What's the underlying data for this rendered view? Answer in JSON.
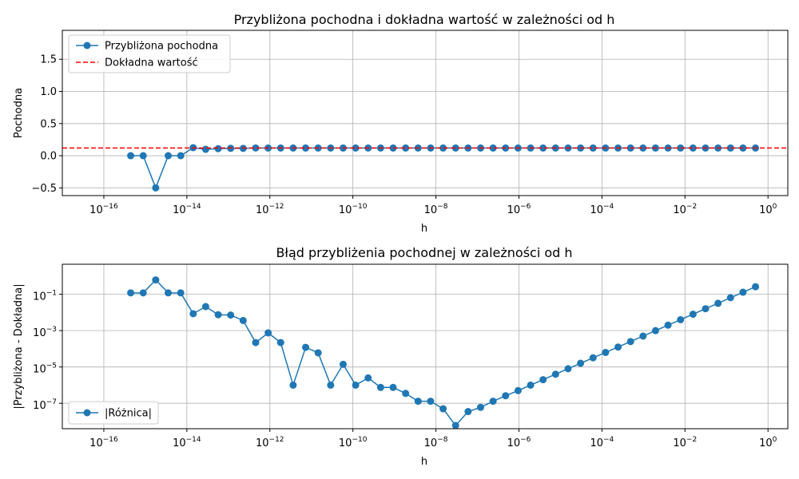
{
  "chart_data": [
    {
      "type": "line",
      "title": "Przybliżona pochodna i dokładna wartość w zależności od h",
      "xlabel": "h",
      "ylabel": "Pochodna",
      "xscale": "log",
      "yscale": "linear",
      "xlim": [
        1e-17,
        3
      ],
      "ylim": [
        -0.62,
        1.95
      ],
      "grid": true,
      "legend_position": "top-left",
      "x_ticks": [
        {
          "value": 1e-16,
          "base": "10",
          "exp": "−16"
        },
        {
          "value": 1e-14,
          "base": "10",
          "exp": "−14"
        },
        {
          "value": 1e-12,
          "base": "10",
          "exp": "−12"
        },
        {
          "value": 1e-10,
          "base": "10",
          "exp": "−10"
        },
        {
          "value": 1e-08,
          "base": "10",
          "exp": "−8"
        },
        {
          "value": 1e-06,
          "base": "10",
          "exp": "−6"
        },
        {
          "value": 0.0001,
          "base": "10",
          "exp": "−4"
        },
        {
          "value": 0.01,
          "base": "10",
          "exp": "−2"
        },
        {
          "value": 1,
          "base": "10",
          "exp": "0"
        }
      ],
      "y_ticks": [
        {
          "value": -0.5,
          "label": "−0.5"
        },
        {
          "value": 0.0,
          "label": "0.0"
        },
        {
          "value": 0.5,
          "label": "0.5"
        },
        {
          "value": 1.0,
          "label": "1.0"
        },
        {
          "value": 1.5,
          "label": "1.5"
        }
      ],
      "series": [
        {
          "name": "Przybliżona pochodna",
          "color": "#1f77b4",
          "marker": "circle",
          "x": [
            4.44e-16,
            8.88e-16,
            1.776e-15,
            3.553e-15,
            7.105e-15,
            1.4211e-14,
            2.8422e-14,
            5.6843e-14,
            1.13687e-13,
            2.27374e-13,
            4.54747e-13,
            9.09495e-13,
            1.818989e-12,
            3.637979e-12,
            7.275958e-12,
            1.4551915e-11,
            2.910383e-11,
            5.820766e-11,
            1.16415322e-10,
            2.32830644e-10,
            4.65661287e-10,
            9.31322575e-10,
            1.86264515e-09,
            3.7252903e-09,
            7.4505806e-09,
            1.49011612e-08,
            2.98023224e-08,
            5.96046448e-08,
            1.192092896e-07,
            2.384185791e-07,
            4.768371582e-07,
            9.536743164e-07,
            1.9073486328e-06,
            3.8146972656e-06,
            7.6293945312e-06,
            1.52587890625e-05,
            3.0517578125e-05,
            6.103515625e-05,
            0.0001220703125,
            0.000244140625,
            0.00048828125,
            0.0009765625,
            0.001953125,
            0.00390625,
            0.0078125,
            0.015625,
            0.03125,
            0.0625,
            0.125,
            0.25,
            0.5
          ],
          "y": [
            0.0,
            0.0,
            -0.5,
            0.0,
            0.0,
            0.125,
            0.1,
            0.11,
            0.115,
            0.114,
            0.121,
            0.12,
            0.12,
            0.12,
            0.12,
            0.12,
            0.12,
            0.12,
            0.12,
            0.12,
            0.12,
            0.12,
            0.12,
            0.12,
            0.12,
            0.12,
            0.12,
            0.12,
            0.12,
            0.12,
            0.12,
            0.12,
            0.12,
            0.12,
            0.12,
            0.12,
            0.12,
            0.12,
            0.12,
            0.12,
            0.12,
            0.12,
            0.12,
            0.12,
            0.12,
            0.12,
            0.12,
            0.12,
            0.12,
            0.12,
            0.12
          ]
        },
        {
          "name": "Dokładna wartość",
          "color": "#ff0000",
          "style": "dashed",
          "y_const": 0.1208
        }
      ]
    },
    {
      "type": "line",
      "title": "Błąd przybliżenia pochodnej w zależności od h",
      "xlabel": "h",
      "ylabel": "|Przybliżona - Dokładna|",
      "xscale": "log",
      "yscale": "log",
      "xlim": [
        1e-17,
        3
      ],
      "ylim": [
        4e-09,
        4.5
      ],
      "grid": true,
      "legend_position": "bottom-left",
      "x_ticks": [
        {
          "value": 1e-16,
          "base": "10",
          "exp": "−16"
        },
        {
          "value": 1e-14,
          "base": "10",
          "exp": "−14"
        },
        {
          "value": 1e-12,
          "base": "10",
          "exp": "−12"
        },
        {
          "value": 1e-10,
          "base": "10",
          "exp": "−10"
        },
        {
          "value": 1e-08,
          "base": "10",
          "exp": "−8"
        },
        {
          "value": 1e-06,
          "base": "10",
          "exp": "−6"
        },
        {
          "value": 0.0001,
          "base": "10",
          "exp": "−4"
        },
        {
          "value": 0.01,
          "base": "10",
          "exp": "−2"
        },
        {
          "value": 1,
          "base": "10",
          "exp": "0"
        }
      ],
      "y_ticks": [
        {
          "value": 1e-07,
          "base": "10",
          "exp": "−7"
        },
        {
          "value": 1e-05,
          "base": "10",
          "exp": "−5"
        },
        {
          "value": 0.001,
          "base": "10",
          "exp": "−3"
        },
        {
          "value": 0.1,
          "base": "10",
          "exp": "−1"
        }
      ],
      "series": [
        {
          "name": "|Różnica|",
          "color": "#1f77b4",
          "marker": "circle",
          "x": [
            4.44e-16,
            8.88e-16,
            1.776e-15,
            3.553e-15,
            7.105e-15,
            1.4211e-14,
            2.8422e-14,
            5.6843e-14,
            1.13687e-13,
            2.27374e-13,
            4.54747e-13,
            9.09495e-13,
            1.818989e-12,
            3.637979e-12,
            7.275958e-12,
            1.4551915e-11,
            2.910383e-11,
            5.820766e-11,
            1.16415322e-10,
            2.32830644e-10,
            4.65661287e-10,
            9.31322575e-10,
            1.86264515e-09,
            3.7252903e-09,
            7.4505806e-09,
            1.49011612e-08,
            2.98023224e-08,
            5.96046448e-08,
            1.192092896e-07,
            2.384185791e-07,
            4.768371582e-07,
            9.536743164e-07,
            1.9073486328e-06,
            3.8146972656e-06,
            7.6293945312e-06,
            1.52587890625e-05,
            3.0517578125e-05,
            6.103515625e-05,
            0.0001220703125,
            0.000244140625,
            0.00048828125,
            0.0009765625,
            0.001953125,
            0.00390625,
            0.0078125,
            0.015625,
            0.03125,
            0.0625,
            0.125,
            0.25,
            0.5
          ],
          "y": [
            0.12,
            0.12,
            0.62,
            0.12,
            0.12,
            0.0085,
            0.021,
            0.0075,
            0.0072,
            0.0036,
            0.00022,
            0.00075,
            0.00022,
            1e-06,
            0.00012,
            6e-05,
            1e-06,
            1.4e-05,
            1e-06,
            2.5e-06,
            7.5e-07,
            7.5e-07,
            3.5e-07,
            1.3e-07,
            1.3e-07,
            5e-08,
            6e-09,
            3.5e-08,
            6e-08,
            1.3e-07,
            2.6e-07,
            5e-07,
            1e-06,
            2e-06,
            4e-06,
            8e-06,
            1.6e-05,
            3.2e-05,
            6.3e-05,
            0.000125,
            0.00025,
            0.0005,
            0.001,
            0.002,
            0.004,
            0.008,
            0.016,
            0.032,
            0.065,
            0.13,
            0.26
          ]
        }
      ]
    }
  ]
}
